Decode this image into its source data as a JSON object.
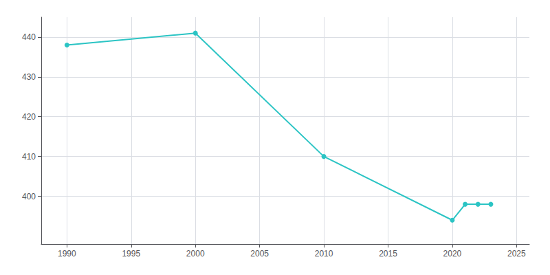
{
  "chart_data": {
    "type": "line",
    "x": [
      1990,
      2000,
      2010,
      2020,
      2021,
      2022,
      2023
    ],
    "values": [
      438,
      441,
      410,
      394,
      398,
      398,
      398
    ],
    "color": "#2BC4C4",
    "marker": "circle",
    "xlim": [
      1988,
      2026
    ],
    "xticks": [
      1990,
      1995,
      2000,
      2005,
      2010,
      2015,
      2020,
      2025
    ],
    "ylim": [
      388,
      445
    ],
    "yticks": [
      400,
      410,
      420,
      430,
      440
    ],
    "grid": true
  }
}
